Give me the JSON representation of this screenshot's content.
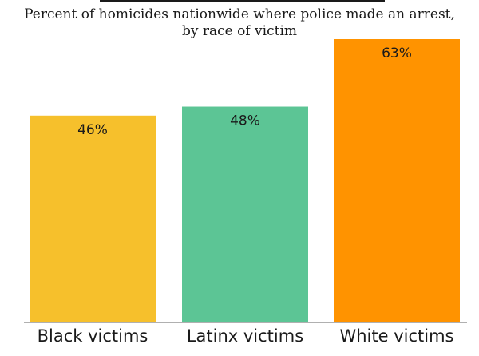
{
  "chart_data": {
    "type": "bar",
    "title_lines": [
      "Percent of homicides nationwide where police made an arrest,",
      "by race of victim"
    ],
    "categories": [
      "Black victims",
      "Latinx victims",
      "White victims"
    ],
    "values": [
      46,
      48,
      63
    ],
    "value_labels": [
      "46%",
      "48%",
      "63%"
    ],
    "colors": [
      "#f6c02c",
      "#5cc595",
      "#ff9300"
    ],
    "ylim": [
      0,
      63
    ],
    "grid": false,
    "legend": "none"
  }
}
